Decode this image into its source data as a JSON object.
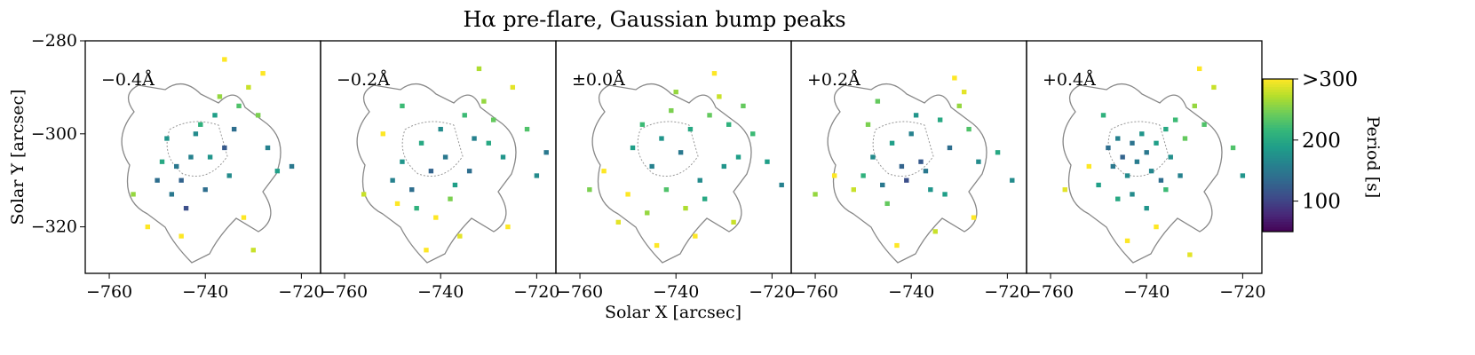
{
  "chart_data": {
    "type": "scatter",
    "title": "Hα pre-flare, Gaussian bump peaks",
    "xlabel": "Solar X [arcsec]",
    "ylabel": "Solar Y [arcsec]",
    "colorbar_label": "Period [s]",
    "colormap": "viridis",
    "clim": [
      50,
      300
    ],
    "cticks": [
      100,
      200,
      {
        "value": 300,
        "label": ">300"
      }
    ],
    "xlim": [
      -765,
      -716
    ],
    "ylim": [
      -330,
      -280
    ],
    "xticks": [
      {
        "value": -760,
        "label": "−760"
      },
      {
        "value": -740,
        "label": "−740"
      },
      {
        "value": -720,
        "label": "−720"
      }
    ],
    "yticks": [
      {
        "value": -280,
        "label": "−280"
      },
      {
        "value": -300,
        "label": "−300"
      },
      {
        "value": -320,
        "label": "−320"
      }
    ],
    "series": [
      {
        "name": "−0.4Å",
        "x": [
          -748,
          -746,
          -745,
          -743,
          -741,
          -740,
          -738,
          -736,
          -735,
          -733,
          -731,
          -729,
          -727,
          -750,
          -749,
          -747,
          -744,
          -742,
          -739,
          -737,
          -734,
          -732,
          -728,
          -725,
          -752,
          -755,
          -736,
          -722,
          -730,
          -745
        ],
        "y": [
          -301,
          -307,
          -310,
          -305,
          -298,
          -312,
          -296,
          -303,
          -309,
          -294,
          -290,
          -296,
          -303,
          -310,
          -306,
          -313,
          -316,
          -300,
          -305,
          -292,
          -299,
          -318,
          -287,
          -308,
          -320,
          -313,
          -284,
          -307,
          -325,
          -322
        ],
        "values": [
          180,
          150,
          130,
          160,
          210,
          140,
          190,
          120,
          170,
          230,
          280,
          250,
          160,
          140,
          200,
          150,
          110,
          170,
          180,
          260,
          140,
          300,
          300,
          190,
          300,
          260,
          300,
          150,
          280,
          300
        ]
      },
      {
        "name": "−0.2Å",
        "x": [
          -750,
          -748,
          -746,
          -744,
          -742,
          -740,
          -739,
          -737,
          -735,
          -733,
          -731,
          -729,
          -727,
          -725,
          -749,
          -745,
          -741,
          -738,
          -734,
          -730,
          -752,
          -756,
          -722,
          -720,
          -743,
          -736,
          -726,
          -732,
          -748,
          -718
        ],
        "y": [
          -310,
          -306,
          -312,
          -302,
          -308,
          -299,
          -305,
          -311,
          -296,
          -301,
          -293,
          -297,
          -305,
          -290,
          -315,
          -316,
          -318,
          -314,
          -308,
          -302,
          -300,
          -313,
          -299,
          -309,
          -325,
          -322,
          -320,
          -286,
          -294,
          -304
        ],
        "values": [
          160,
          180,
          140,
          200,
          130,
          170,
          150,
          190,
          220,
          160,
          260,
          240,
          180,
          290,
          300,
          210,
          300,
          250,
          140,
          200,
          300,
          280,
          230,
          170,
          300,
          290,
          300,
          270,
          220,
          150
        ]
      },
      {
        "name": "±0.0Å",
        "x": [
          -749,
          -747,
          -745,
          -743,
          -741,
          -739,
          -737,
          -735,
          -733,
          -731,
          -729,
          -727,
          -750,
          -746,
          -742,
          -738,
          -734,
          -730,
          -755,
          -758,
          -724,
          -721,
          -744,
          -736,
          -728,
          -732,
          -740,
          -752,
          -726,
          -718
        ],
        "y": [
          -303,
          -298,
          -307,
          -301,
          -295,
          -304,
          -299,
          -310,
          -296,
          -292,
          -298,
          -305,
          -313,
          -317,
          -312,
          -316,
          -314,
          -307,
          -308,
          -312,
          -300,
          -306,
          -324,
          -322,
          -319,
          -287,
          -291,
          -319,
          -294,
          -311
        ],
        "values": [
          190,
          220,
          160,
          180,
          250,
          150,
          200,
          170,
          240,
          280,
          210,
          190,
          300,
          260,
          230,
          270,
          200,
          180,
          300,
          250,
          220,
          190,
          300,
          300,
          280,
          300,
          260,
          290,
          240,
          160
        ]
      },
      {
        "name": "+0.2Å",
        "x": [
          -750,
          -748,
          -746,
          -744,
          -742,
          -740,
          -738,
          -736,
          -734,
          -732,
          -730,
          -728,
          -726,
          -749,
          -745,
          -741,
          -737,
          -733,
          -729,
          -752,
          -756,
          -760,
          -722,
          -719,
          -743,
          -735,
          -727,
          -731,
          -747,
          -739
        ],
        "y": [
          -309,
          -305,
          -311,
          -302,
          -307,
          -300,
          -306,
          -312,
          -297,
          -303,
          -294,
          -299,
          -306,
          -298,
          -315,
          -310,
          -308,
          -313,
          -291,
          -312,
          -309,
          -313,
          -304,
          -310,
          -324,
          -321,
          -318,
          -288,
          -293,
          -296
        ],
        "values": [
          210,
          170,
          150,
          190,
          130,
          160,
          120,
          180,
          200,
          140,
          260,
          230,
          170,
          250,
          240,
          110,
          150,
          190,
          290,
          280,
          300,
          260,
          200,
          170,
          300,
          280,
          300,
          300,
          240,
          180
        ]
      },
      {
        "name": "+0.4Å",
        "x": [
          -748,
          -747,
          -746,
          -745,
          -744,
          -743,
          -742,
          -741,
          -740,
          -739,
          -738,
          -737,
          -736,
          -735,
          -734,
          -732,
          -730,
          -728,
          -750,
          -749,
          -746,
          -743,
          -740,
          -736,
          -733,
          -726,
          -752,
          -757,
          -722,
          -720,
          -744,
          -738,
          -731,
          -729
        ],
        "y": [
          -303,
          -307,
          -301,
          -305,
          -309,
          -302,
          -306,
          -300,
          -304,
          -308,
          -302,
          -310,
          -299,
          -305,
          -297,
          -301,
          -294,
          -298,
          -311,
          -296,
          -314,
          -313,
          -316,
          -312,
          -309,
          -290,
          -307,
          -312,
          -303,
          -309,
          -323,
          -320,
          -326,
          -286
        ],
        "values": [
          140,
          150,
          160,
          130,
          170,
          145,
          155,
          180,
          150,
          165,
          190,
          140,
          200,
          175,
          220,
          240,
          260,
          230,
          190,
          210,
          200,
          170,
          180,
          220,
          160,
          280,
          300,
          290,
          230,
          180,
          300,
          300,
          290,
          300
        ]
      }
    ]
  }
}
